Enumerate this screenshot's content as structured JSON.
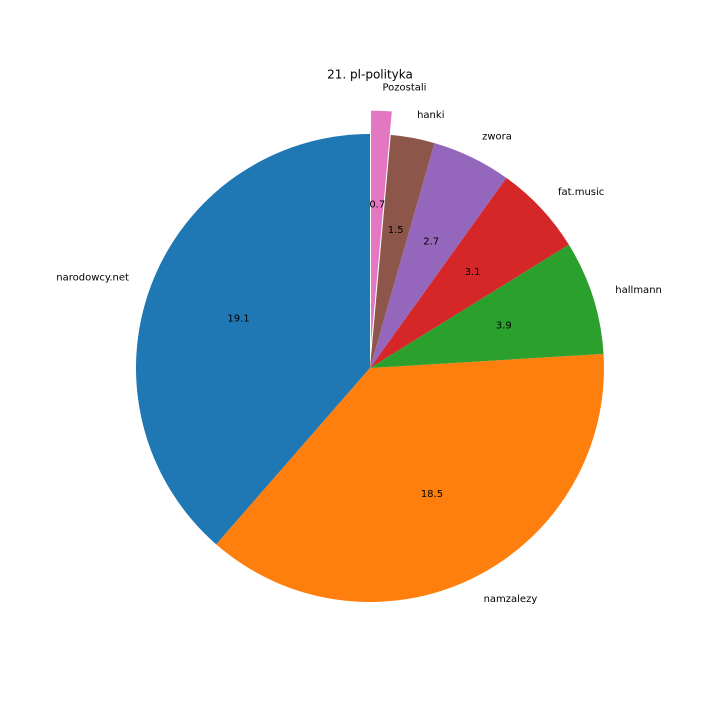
{
  "chart_data": {
    "type": "pie",
    "title": "21. pl-polityka",
    "categories": [
      "narodowcy.net",
      "namzalezy",
      "hallmann",
      "fat.music",
      "zwora",
      "hanki",
      "Pozostali"
    ],
    "values": [
      19.1,
      18.5,
      3.9,
      3.1,
      2.7,
      1.5,
      0.7
    ],
    "colors": [
      "#1f77b4",
      "#ff7f0e",
      "#2ca02c",
      "#d62728",
      "#9467bd",
      "#8c564b",
      "#e377c2"
    ],
    "explode": [
      0,
      0,
      0,
      0,
      0,
      0,
      0.1
    ]
  }
}
